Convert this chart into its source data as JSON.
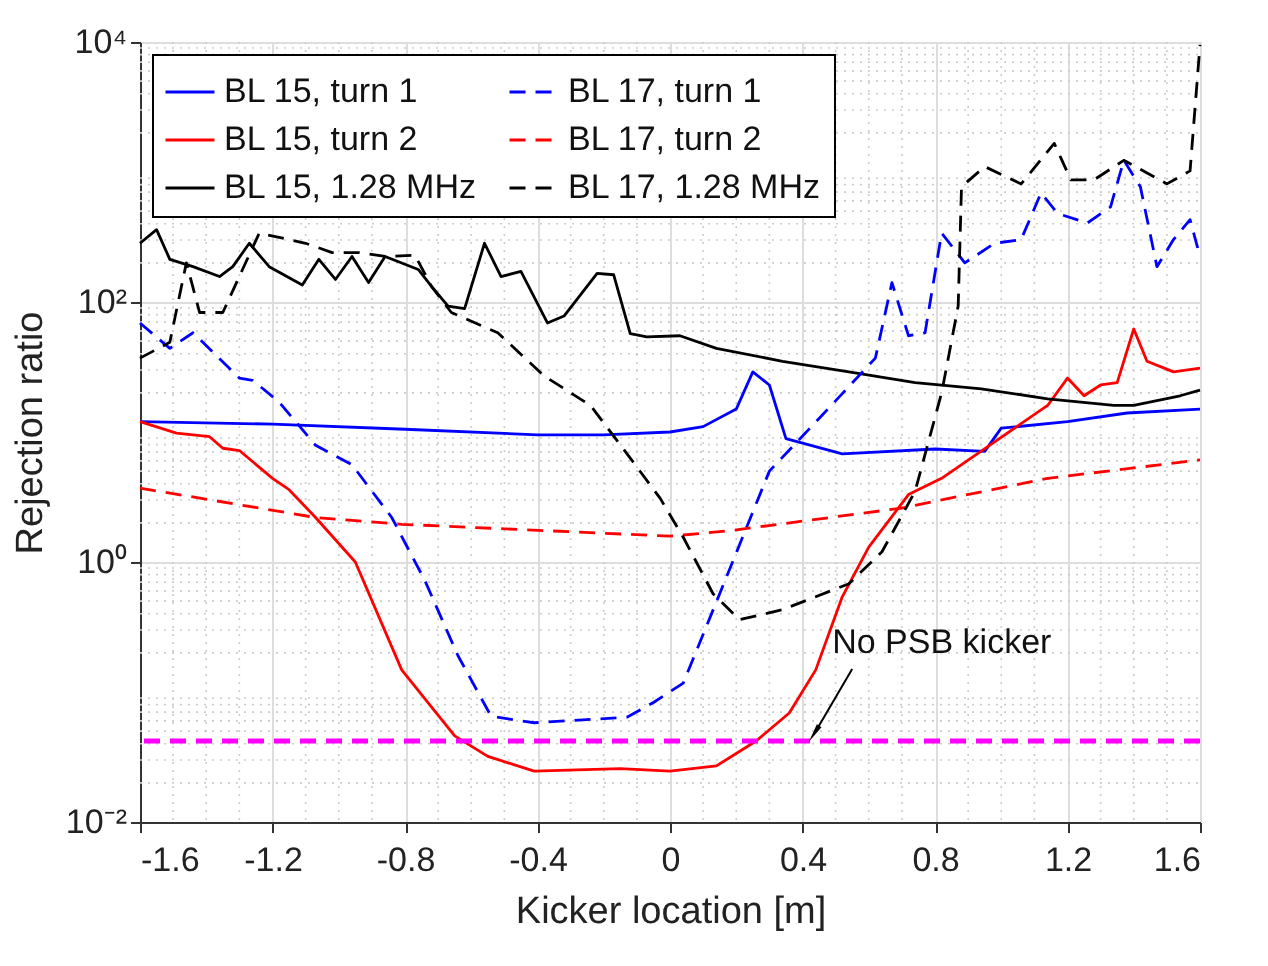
{
  "chart_data": {
    "type": "line",
    "xlabel": "Kicker location [m]",
    "ylabel": "Rejection ratio",
    "xlim": [
      -1.6,
      1.6
    ],
    "xticks": [
      -1.6,
      -1.2,
      -0.8,
      -0.4,
      0,
      0.4,
      0.8,
      1.2,
      1.6
    ],
    "ylim": [
      0.01,
      10000
    ],
    "log": "y",
    "yticks": [
      {
        "value": 0.01,
        "label": "10⁻²"
      },
      {
        "value": 1,
        "label": "10⁰"
      },
      {
        "value": 100,
        "label": "10²"
      },
      {
        "value": 10000,
        "label": "10⁴"
      }
    ],
    "grid": true,
    "legend": "top left",
    "series": [
      {
        "name": "BL 15, turn 1",
        "color": "#0000ff",
        "line_style": "solid",
        "x": [
          -1.6,
          -1.2,
          -0.8,
          -0.4,
          -0.2,
          0,
          0.1,
          0.2,
          0.25,
          0.3,
          0.35,
          0.52,
          0.8,
          0.95,
          1.0,
          1.2,
          1.38,
          1.6
        ],
        "values": [
          12,
          11.5,
          10.5,
          9.5,
          9.5,
          10,
          11,
          15,
          29,
          23,
          8.9,
          6.8,
          7.4,
          7.1,
          10.7,
          12,
          14,
          15
        ]
      },
      {
        "name": "BL 15, turn 2",
        "color": "#ff0000",
        "line_style": "solid",
        "x": [
          -1.6,
          -1.49,
          -1.39,
          -1.35,
          -1.3,
          -1.2,
          -1.15,
          -1.07,
          -0.95,
          -0.81,
          -0.65,
          -0.55,
          -0.41,
          -0.15,
          0,
          0.14,
          0.26,
          0.36,
          0.44,
          0.52,
          0.6,
          0.72,
          0.82,
          0.98,
          1.14,
          1.2,
          1.25,
          1.3,
          1.35,
          1.4,
          1.44,
          1.52,
          1.6
        ],
        "values": [
          12,
          9.8,
          9.2,
          7.5,
          7.2,
          4.4,
          3.6,
          2.2,
          1.0,
          0.148,
          0.046,
          0.032,
          0.0246,
          0.0257,
          0.0246,
          0.027,
          0.042,
          0.069,
          0.148,
          0.54,
          1.3,
          3.3,
          4.4,
          8.4,
          16,
          26,
          19,
          23,
          24,
          62,
          35,
          29,
          31
        ]
      },
      {
        "name": "BL 15, 1.28 MHz",
        "color": "#000000",
        "line_style": "solid",
        "x": [
          -1.6,
          -1.55,
          -1.51,
          -1.44,
          -1.36,
          -1.32,
          -1.27,
          -1.21,
          -1.11,
          -1.06,
          -1.01,
          -0.96,
          -0.91,
          -0.86,
          -0.76,
          -0.72,
          -0.67,
          -0.62,
          -0.56,
          -0.51,
          -0.45,
          -0.37,
          -0.32,
          -0.22,
          -0.17,
          -0.12,
          -0.07,
          0.03,
          0.14,
          0.34,
          0.54,
          0.74,
          0.94,
          1.14,
          1.34,
          1.4,
          1.54,
          1.6
        ],
        "values": [
          283,
          360,
          213,
          187,
          157,
          187,
          283,
          187,
          135,
          213,
          149,
          224,
          141,
          224,
          178,
          132,
          93,
          89,
          283,
          157,
          172,
          69,
          78,
          166,
          162,
          57,
          54,
          55,
          44,
          35,
          29,
          24,
          21.5,
          18,
          16,
          16,
          19,
          21
        ]
      },
      {
        "name": "BL 17, turn 1",
        "color": "#0000ff",
        "line_style": "dashed",
        "x": [
          -1.6,
          -1.51,
          -1.44,
          -1.3,
          -1.26,
          -1.18,
          -1.07,
          -0.96,
          -0.84,
          -0.74,
          -0.64,
          -0.54,
          -0.41,
          -0.13,
          -0.05,
          0.04,
          0.15,
          0.3,
          0.45,
          0.62,
          0.67,
          0.72,
          0.77,
          0.82,
          0.89,
          0.98,
          1.06,
          1.12,
          1.17,
          1.26,
          1.33,
          1.37,
          1.42,
          1.47,
          1.52,
          1.57,
          1.6
        ],
        "values": [
          69,
          44,
          58,
          26,
          25,
          17,
          7.9,
          5.6,
          2.2,
          0.72,
          0.19,
          0.065,
          0.058,
          0.064,
          0.083,
          0.117,
          0.57,
          5,
          12.7,
          37,
          141,
          55,
          58,
          339,
          200,
          283,
          302,
          690,
          480,
          405,
          540,
          1230,
          770,
          187,
          302,
          430,
          224
        ]
      },
      {
        "name": "BL 17, turn 2",
        "color": "#ff0000",
        "line_style": "dashed",
        "x": [
          -1.6,
          -1.07,
          -0.81,
          0,
          0.18,
          0.7,
          1.14,
          1.6
        ],
        "values": [
          3.7,
          2.2,
          1.95,
          1.58,
          1.74,
          2.6,
          4.4,
          6.1
        ]
      },
      {
        "name": "BL 17, 1.28 MHz",
        "color": "#000000",
        "line_style": "dashed",
        "x": [
          -1.6,
          -1.51,
          -1.46,
          -1.42,
          -1.35,
          -1.24,
          -1.1,
          -1.02,
          -0.94,
          -0.86,
          -0.77,
          -0.72,
          -0.66,
          -0.52,
          -0.38,
          -0.24,
          -0.12,
          -0.03,
          0.04,
          0.13,
          0.21,
          0.34,
          0.54,
          0.64,
          0.74,
          0.82,
          0.87,
          0.88,
          0.95,
          1.06,
          1.16,
          1.21,
          1.28,
          1.37,
          1.5,
          1.57,
          1.6
        ],
        "values": [
          37,
          49,
          200,
          83,
          83,
          339,
          283,
          240,
          240,
          224,
          229,
          132,
          83,
          58,
          27,
          16,
          6.3,
          3.1,
          1.55,
          0.57,
          0.36,
          0.43,
          0.68,
          1.2,
          3.5,
          20,
          93,
          770,
          1100,
          810,
          1660,
          870,
          870,
          1230,
          810,
          1020,
          9500
        ]
      }
    ],
    "ref_lines": [
      {
        "axis": "y",
        "value": 0.042,
        "color": "#ff00ff",
        "line_style": "dashed"
      }
    ],
    "annotations": [
      {
        "text": "No PSB kicker",
        "x": 0.44,
        "y": 0.05
      }
    ]
  }
}
